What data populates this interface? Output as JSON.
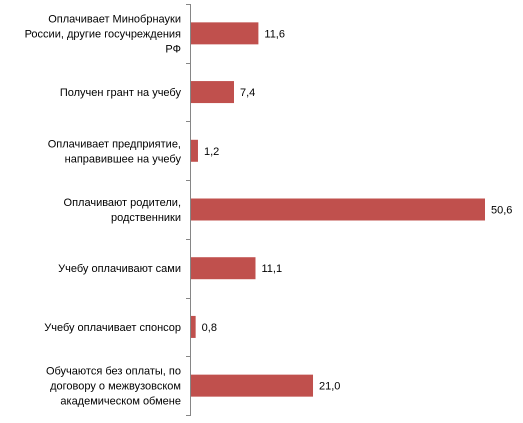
{
  "chart_data": {
    "type": "bar",
    "orientation": "horizontal",
    "categories": [
      [
        "Оплачивает Минобрнауки",
        "России, другие госучреждения",
        "РФ"
      ],
      [
        "Получен грант на учебу"
      ],
      [
        "Оплачивает предприятие,",
        "направившее на учебу"
      ],
      [
        "Оплачивают родители,",
        "родственники"
      ],
      [
        "Учебу оплачивают сами"
      ],
      [
        "Учебу оплачивает спонсор"
      ],
      [
        "Обучаются без оплаты, по",
        "договору о межвузовском",
        "академическом обмене"
      ]
    ],
    "values": [
      11.6,
      7.4,
      1.2,
      50.6,
      11.1,
      0.8,
      21.0
    ],
    "value_labels": [
      "11,6",
      "7,4",
      "1,2",
      "50,6",
      "11,1",
      "0,8",
      "21,0"
    ],
    "xlim": [
      0,
      50.6
    ],
    "bar_color": "#C0504D",
    "axis_color": "#868686",
    "grid": false,
    "legend": "none"
  }
}
